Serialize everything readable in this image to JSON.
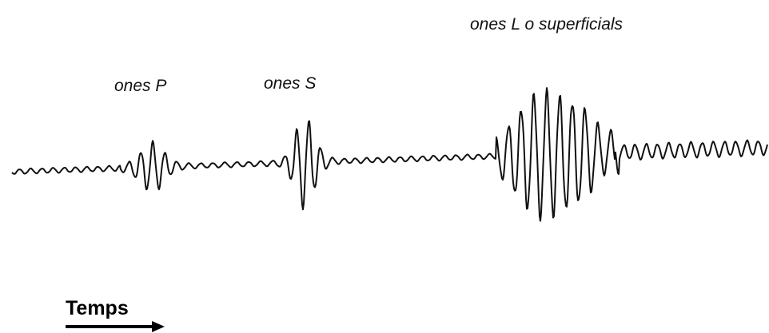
{
  "labels": {
    "p_waves": "ones P",
    "s_waves": "ones S",
    "l_waves": "ones L o superficials"
  },
  "axis": {
    "time": "Temps"
  }
}
